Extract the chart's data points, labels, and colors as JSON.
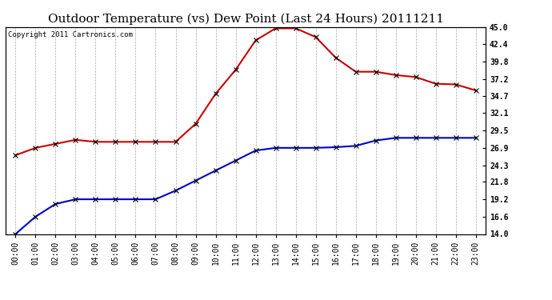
{
  "title": "Outdoor Temperature (vs) Dew Point (Last 24 Hours) 20111211",
  "copyright": "Copyright 2011 Cartronics.com",
  "hours": [
    "00:00",
    "01:00",
    "02:00",
    "03:00",
    "04:00",
    "05:00",
    "06:00",
    "07:00",
    "08:00",
    "09:00",
    "10:00",
    "11:00",
    "12:00",
    "13:00",
    "14:00",
    "15:00",
    "16:00",
    "17:00",
    "18:00",
    "19:00",
    "20:00",
    "21:00",
    "22:00",
    "23:00"
  ],
  "temp": [
    25.8,
    26.9,
    27.5,
    28.1,
    27.8,
    27.8,
    27.8,
    27.8,
    27.8,
    30.5,
    35.0,
    38.6,
    43.0,
    44.8,
    44.8,
    43.5,
    40.4,
    38.3,
    38.3,
    37.8,
    37.5,
    36.5,
    36.4,
    35.5
  ],
  "dew": [
    14.0,
    16.6,
    18.5,
    19.2,
    19.2,
    19.2,
    19.2,
    19.2,
    20.5,
    22.0,
    23.5,
    25.0,
    26.5,
    26.9,
    26.9,
    26.9,
    27.0,
    27.2,
    28.0,
    28.4,
    28.4,
    28.4,
    28.4,
    28.4
  ],
  "temp_color": "#cc0000",
  "dew_color": "#0000cc",
  "bg_color": "#ffffff",
  "grid_color": "#aaaaaa",
  "ylim_min": 14.0,
  "ylim_max": 45.0,
  "yticks": [
    14.0,
    16.6,
    19.2,
    21.8,
    24.3,
    26.9,
    29.5,
    32.1,
    34.7,
    37.2,
    39.8,
    42.4,
    45.0
  ],
  "marker": "x",
  "marker_size": 4,
  "linewidth": 1.5,
  "title_fontsize": 11,
  "tick_fontsize": 7,
  "copyright_fontsize": 6.5
}
